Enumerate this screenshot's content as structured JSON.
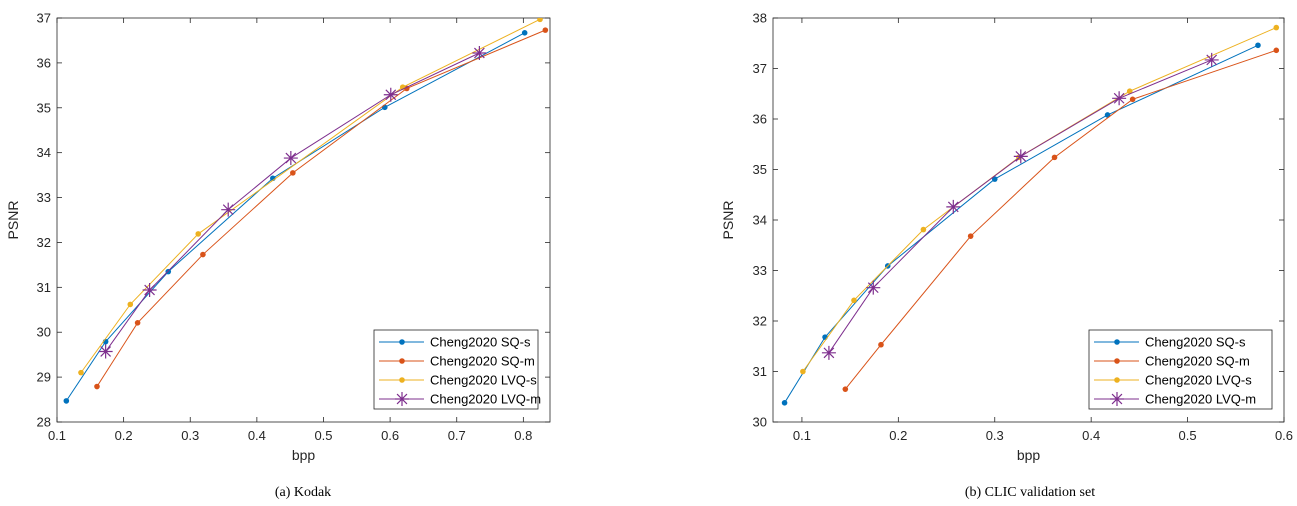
{
  "colors": {
    "SQ-s": "#0072BD",
    "SQ-m": "#D95319",
    "LVQ-s": "#EDB120",
    "LVQ-m": "#7E2F8E"
  },
  "chart_data": [
    {
      "type": "line",
      "caption": "(a) Kodak",
      "xlabel": "bpp",
      "ylabel": "PSNR",
      "xlim": [
        0.1,
        0.84
      ],
      "ylim": [
        28,
        37
      ],
      "xticks": [
        0.1,
        0.2,
        0.3,
        0.4,
        0.5,
        0.6,
        0.7,
        0.8
      ],
      "yticks": [
        28,
        29,
        30,
        31,
        32,
        33,
        34,
        35,
        36,
        37
      ],
      "grid": false,
      "legend_position": "bottom-right",
      "series": [
        {
          "name": "Cheng2020 SQ-s",
          "key": "SQ-s",
          "marker": "dot",
          "x": [
            0.114,
            0.173,
            0.267,
            0.424,
            0.592,
            0.802
          ],
          "y": [
            28.47,
            29.79,
            31.35,
            33.43,
            35.01,
            36.67
          ]
        },
        {
          "name": "Cheng2020 SQ-m",
          "key": "SQ-m",
          "marker": "dot",
          "x": [
            0.16,
            0.221,
            0.319,
            0.454,
            0.625,
            0.833
          ],
          "y": [
            28.79,
            30.21,
            31.73,
            33.55,
            35.43,
            36.73
          ]
        },
        {
          "name": "Cheng2020 LVQ-s",
          "key": "LVQ-s",
          "marker": "dot",
          "x": [
            0.136,
            0.21,
            0.312,
            0.619,
            0.825
          ],
          "y": [
            29.1,
            30.62,
            32.19,
            35.46,
            36.97
          ]
        },
        {
          "name": "Cheng2020 LVQ-m",
          "key": "LVQ-m",
          "marker": "star",
          "x": [
            0.173,
            0.239,
            0.357,
            0.451,
            0.601,
            0.734
          ],
          "y": [
            29.57,
            30.94,
            32.73,
            33.88,
            35.29,
            36.22
          ]
        }
      ]
    },
    {
      "type": "line",
      "caption": "(b) CLIC validation set",
      "xlabel": "bpp",
      "ylabel": "PSNR",
      "xlim": [
        0.07,
        0.6
      ],
      "ylim": [
        30,
        38
      ],
      "xticks": [
        0.1,
        0.2,
        0.3,
        0.4,
        0.5,
        0.6
      ],
      "yticks": [
        30,
        31,
        32,
        33,
        34,
        35,
        36,
        37,
        38
      ],
      "grid": false,
      "legend_position": "bottom-right",
      "series": [
        {
          "name": "Cheng2020 SQ-s",
          "key": "SQ-s",
          "marker": "dot",
          "x": [
            0.082,
            0.124,
            0.189,
            0.3,
            0.417,
            0.573
          ],
          "y": [
            30.38,
            31.68,
            33.09,
            34.81,
            36.08,
            37.46
          ]
        },
        {
          "name": "Cheng2020 SQ-m",
          "key": "SQ-m",
          "marker": "dot",
          "x": [
            0.145,
            0.182,
            0.275,
            0.362,
            0.443,
            0.592
          ],
          "y": [
            30.65,
            31.53,
            33.68,
            35.24,
            36.39,
            37.36
          ]
        },
        {
          "name": "Cheng2020 LVQ-s",
          "key": "LVQ-s",
          "marker": "dot",
          "x": [
            0.101,
            0.154,
            0.226,
            0.325,
            0.44,
            0.592
          ],
          "y": [
            31.0,
            32.41,
            33.81,
            35.24,
            36.55,
            37.81
          ]
        },
        {
          "name": "Cheng2020 LVQ-m",
          "key": "LVQ-m",
          "marker": "star",
          "x": [
            0.128,
            0.174,
            0.257,
            0.327,
            0.429,
            0.525
          ],
          "y": [
            31.37,
            32.66,
            34.26,
            35.26,
            36.41,
            37.17
          ]
        }
      ]
    }
  ]
}
